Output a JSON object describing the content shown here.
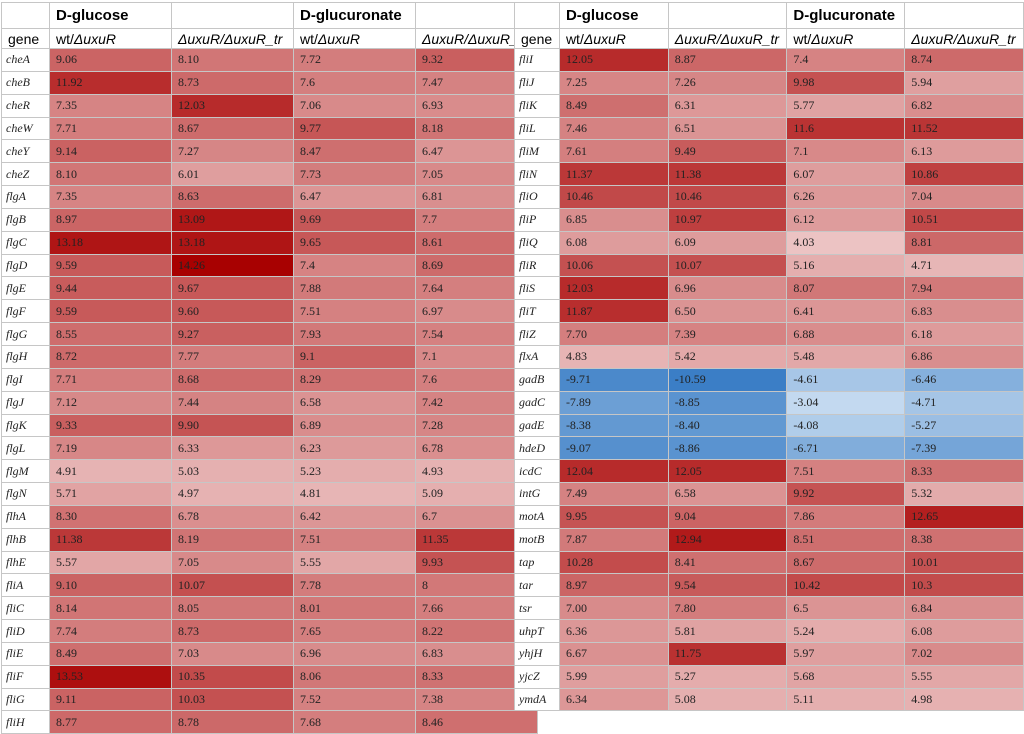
{
  "header": {
    "group1": "D-glucose",
    "group2": "D-glucuronate",
    "gene_label": "gene",
    "col_a_prefix": "wt/",
    "col_a_italic": "ΔuxuR",
    "col_b_italic": "ΔuxuR/ΔuxuR_tr"
  },
  "colors": {
    "pos_light": "#ecc4c4",
    "pos_dark": "#a80000",
    "neg_light": "#c7dcf1",
    "neg_dark": "#3b7ec6"
  },
  "scale": {
    "pos_min": 4.0,
    "pos_max": 14.3,
    "neg_min": -2.8,
    "neg_max": -10.6
  },
  "left_rows": [
    {
      "gene": "cheA",
      "v": [
        "9.06",
        "8.10",
        "7.72",
        "9.32"
      ]
    },
    {
      "gene": "cheB",
      "v": [
        "11.92",
        "8.73",
        "7.6",
        "7.47"
      ]
    },
    {
      "gene": "cheR",
      "v": [
        "7.35",
        "12.03",
        "7.06",
        "6.93"
      ]
    },
    {
      "gene": "cheW",
      "v": [
        "7.71",
        "8.67",
        "9.77",
        "8.18"
      ]
    },
    {
      "gene": "cheY",
      "v": [
        "9.14",
        "7.27",
        "8.47",
        "6.47"
      ]
    },
    {
      "gene": "cheZ",
      "v": [
        "8.10",
        "6.01",
        "7.73",
        "7.05"
      ]
    },
    {
      "gene": "flgA",
      "v": [
        "7.35",
        "8.63",
        "6.47",
        "6.81"
      ]
    },
    {
      "gene": "flgB",
      "v": [
        "8.97",
        "13.09",
        "9.69",
        "7.7"
      ]
    },
    {
      "gene": "flgC",
      "v": [
        "13.18",
        "13.18",
        "9.65",
        "8.61"
      ]
    },
    {
      "gene": "flgD",
      "v": [
        "9.59",
        "14.26",
        "7.4",
        "8.69"
      ]
    },
    {
      "gene": "flgE",
      "v": [
        "9.44",
        "9.67",
        "7.88",
        "7.64"
      ]
    },
    {
      "gene": "flgF",
      "v": [
        "9.59",
        "9.60",
        "7.51",
        "6.97"
      ]
    },
    {
      "gene": "flgG",
      "v": [
        "8.55",
        "9.27",
        "7.93",
        "7.54"
      ]
    },
    {
      "gene": "flgH",
      "v": [
        "8.72",
        "7.77",
        "9.1",
        "7.1"
      ]
    },
    {
      "gene": "flgI",
      "v": [
        "7.71",
        "8.68",
        "8.29",
        "7.6"
      ]
    },
    {
      "gene": "flgJ",
      "v": [
        "7.12",
        "7.44",
        "6.58",
        "7.42"
      ]
    },
    {
      "gene": "flgK",
      "v": [
        "9.33",
        "9.90",
        "6.89",
        "7.28"
      ]
    },
    {
      "gene": "flgL",
      "v": [
        "7.19",
        "6.33",
        "6.23",
        "6.78"
      ]
    },
    {
      "gene": "flgM",
      "v": [
        "4.91",
        "5.03",
        "5.23",
        "4.93"
      ]
    },
    {
      "gene": "flgN",
      "v": [
        "5.71",
        "4.97",
        "4.81",
        "5.09"
      ]
    },
    {
      "gene": "flhA",
      "v": [
        "8.30",
        "6.78",
        "6.42",
        "6.7"
      ]
    },
    {
      "gene": "flhB",
      "v": [
        "11.38",
        "8.19",
        "7.51",
        "11.35"
      ]
    },
    {
      "gene": "flhE",
      "v": [
        "5.57",
        "7.05",
        "5.55",
        "9.93"
      ]
    },
    {
      "gene": "fliA",
      "v": [
        "9.10",
        "10.07",
        "7.78",
        "8"
      ]
    },
    {
      "gene": "fliC",
      "v": [
        "8.14",
        "8.05",
        "8.01",
        "7.66"
      ]
    },
    {
      "gene": "fliD",
      "v": [
        "7.74",
        "8.73",
        "7.65",
        "8.22"
      ]
    },
    {
      "gene": "fliE",
      "v": [
        "8.49",
        "7.03",
        "6.96",
        "6.83"
      ]
    },
    {
      "gene": "fliF",
      "v": [
        "13.53",
        "10.35",
        "8.06",
        "8.33"
      ]
    },
    {
      "gene": "fliG",
      "v": [
        "9.11",
        "10.03",
        "7.52",
        "7.38"
      ]
    },
    {
      "gene": "fliH",
      "v": [
        "8.77",
        "8.78",
        "7.68",
        "8.46"
      ]
    }
  ],
  "right_rows": [
    {
      "gene": "fliI",
      "v": [
        "12.05",
        "8.87",
        "7.4",
        "8.74"
      ]
    },
    {
      "gene": "fliJ",
      "v": [
        "7.25",
        "7.26",
        "9.98",
        "5.94"
      ]
    },
    {
      "gene": "fliK",
      "v": [
        "8.49",
        "6.31",
        "5.77",
        "6.82"
      ]
    },
    {
      "gene": "fliL",
      "v": [
        "7.46",
        "6.51",
        "11.6",
        "11.52"
      ]
    },
    {
      "gene": "fliM",
      "v": [
        "7.61",
        "9.49",
        "7.1",
        "6.13"
      ]
    },
    {
      "gene": "fliN",
      "v": [
        "11.37",
        "11.38",
        "6.07",
        "10.86"
      ]
    },
    {
      "gene": "fliO",
      "v": [
        "10.46",
        "10.46",
        "6.26",
        "7.04"
      ]
    },
    {
      "gene": "fliP",
      "v": [
        "6.85",
        "10.97",
        "6.12",
        "10.51"
      ]
    },
    {
      "gene": "fliQ",
      "v": [
        "6.08",
        "6.09",
        "4.03",
        "8.81"
      ]
    },
    {
      "gene": "fliR",
      "v": [
        "10.06",
        "10.07",
        "5.16",
        "4.71"
      ]
    },
    {
      "gene": "fliS",
      "v": [
        "12.03",
        "6.96",
        "8.07",
        "7.94"
      ]
    },
    {
      "gene": "fliT",
      "v": [
        "11.87",
        "6.50",
        "6.41",
        "6.83"
      ]
    },
    {
      "gene": "fliZ",
      "v": [
        "7.70",
        "7.39",
        "6.88",
        "6.18"
      ]
    },
    {
      "gene": "flxA",
      "v": [
        "4.83",
        "5.42",
        "5.48",
        "6.86"
      ]
    },
    {
      "gene": "gadB",
      "v": [
        "-9.71",
        "-10.59",
        "-4.61",
        "-6.46"
      ]
    },
    {
      "gene": "gadC",
      "v": [
        "-7.89",
        "-8.85",
        "-3.04",
        "-4.71"
      ]
    },
    {
      "gene": "gadE",
      "v": [
        "-8.38",
        "-8.40",
        "-4.08",
        "-5.27"
      ]
    },
    {
      "gene": "hdeD",
      "v": [
        "-9.07",
        "-8.86",
        "-6.71",
        "-7.39"
      ]
    },
    {
      "gene": "icdC",
      "v": [
        "12.04",
        "12.05",
        "7.51",
        "8.33"
      ]
    },
    {
      "gene": "intG",
      "v": [
        "7.49",
        "6.58",
        "9.92",
        "5.32"
      ]
    },
    {
      "gene": "motA",
      "v": [
        "9.95",
        "9.04",
        "7.86",
        "12.65"
      ]
    },
    {
      "gene": "motB",
      "v": [
        "7.87",
        "12.94",
        "8.51",
        "8.38"
      ]
    },
    {
      "gene": "tap",
      "v": [
        "10.28",
        "8.41",
        "8.67",
        "10.01"
      ]
    },
    {
      "gene": "tar",
      "v": [
        "8.97",
        "9.54",
        "10.42",
        "10.3"
      ]
    },
    {
      "gene": "tsr",
      "v": [
        "7.00",
        "7.80",
        "6.5",
        "6.84"
      ]
    },
    {
      "gene": "uhpT",
      "v": [
        "6.36",
        "5.81",
        "5.24",
        "6.08"
      ]
    },
    {
      "gene": "yhjH",
      "v": [
        "6.67",
        "11.75",
        "5.97",
        "7.02"
      ]
    },
    {
      "gene": "yjcZ",
      "v": [
        "5.99",
        "5.27",
        "5.68",
        "5.55"
      ]
    },
    {
      "gene": "ymdA",
      "v": [
        "6.34",
        "5.08",
        "5.11",
        "4.98"
      ]
    }
  ]
}
